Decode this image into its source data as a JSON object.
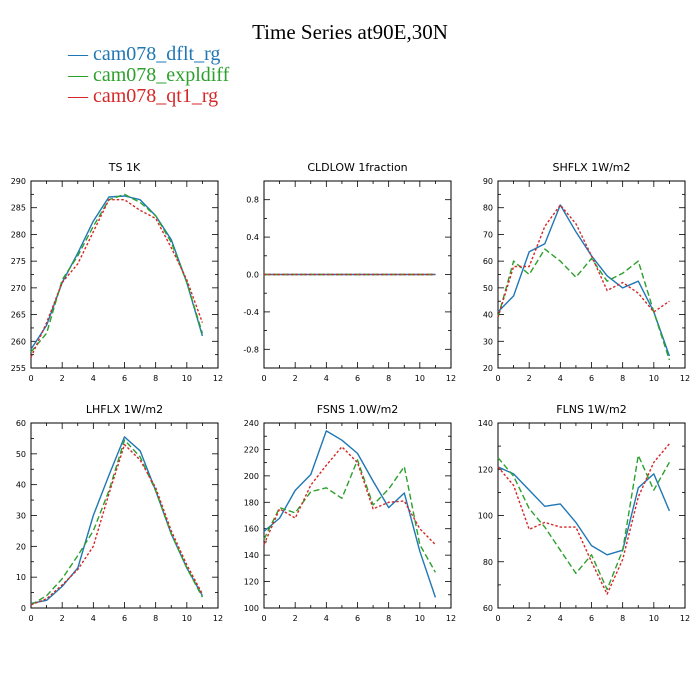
{
  "title": "Time Series at90E,30N",
  "legend": [
    {
      "label": "cam078_dflt_rg",
      "color": "#1f77b4",
      "dash": "solid"
    },
    {
      "label": "cam078_expldiff",
      "color": "#2ca02c",
      "dash": "dashed"
    },
    {
      "label": "cam078_qt1_rg",
      "color": "#d62728",
      "dash": "dotted"
    }
  ],
  "chart_data": [
    {
      "type": "line",
      "title": "TS   1K",
      "x": [
        0,
        1,
        2,
        3,
        4,
        5,
        6,
        7,
        8,
        9,
        10,
        11
      ],
      "xlim": [
        0,
        12
      ],
      "xticks": [
        0,
        2,
        4,
        6,
        8,
        10,
        12
      ],
      "ylim": [
        255,
        290
      ],
      "yticks": [
        255,
        260,
        265,
        270,
        275,
        280,
        285,
        290
      ],
      "series": [
        {
          "name": "cam078_dflt_rg",
          "values": [
            258.5,
            263,
            271,
            276.5,
            282.5,
            287,
            287.2,
            286.5,
            283.5,
            279,
            271,
            261
          ]
        },
        {
          "name": "cam078_expldiff",
          "values": [
            258,
            261.5,
            271.5,
            276,
            281.5,
            286.5,
            287.5,
            286,
            283.5,
            278.5,
            271,
            261.5
          ]
        },
        {
          "name": "cam078_qt1_rg",
          "values": [
            257,
            263.5,
            271,
            274.5,
            280.5,
            286.5,
            286.5,
            284.5,
            283,
            277.5,
            271.5,
            263.5
          ]
        }
      ]
    },
    {
      "type": "line",
      "title": "CLDLOW   1fraction",
      "x": [
        0,
        1,
        2,
        3,
        4,
        5,
        6,
        7,
        8,
        9,
        10,
        11
      ],
      "xlim": [
        0,
        12
      ],
      "xticks": [
        0,
        2,
        4,
        6,
        8,
        10,
        12
      ],
      "ylim": [
        -1,
        1
      ],
      "yticks": [
        -0.8,
        -0.4,
        0.0,
        0.4,
        0.8
      ],
      "ytick_labels": [
        "-0.8",
        "-0.4",
        "0.0",
        "0.4",
        "0.8"
      ],
      "series": [
        {
          "name": "cam078_dflt_rg",
          "values": [
            0,
            0,
            0,
            0,
            0,
            0,
            0,
            0,
            0,
            0,
            0,
            0
          ]
        },
        {
          "name": "cam078_expldiff",
          "values": [
            0,
            0,
            0,
            0,
            0,
            0,
            0,
            0,
            0,
            0,
            0,
            0
          ]
        },
        {
          "name": "cam078_qt1_rg",
          "values": [
            0,
            0,
            0,
            0,
            0,
            0,
            0,
            0,
            0,
            0,
            0,
            0
          ]
        }
      ]
    },
    {
      "type": "line",
      "title": "SHFLX   1W/m2",
      "x": [
        0,
        1,
        2,
        3,
        4,
        5,
        6,
        7,
        8,
        9,
        10,
        11
      ],
      "xlim": [
        0,
        12
      ],
      "xticks": [
        0,
        2,
        4,
        6,
        8,
        10,
        12
      ],
      "ylim": [
        20,
        90
      ],
      "yticks": [
        20,
        30,
        40,
        50,
        60,
        70,
        80,
        90
      ],
      "series": [
        {
          "name": "cam078_dflt_rg",
          "values": [
            41,
            47,
            63.5,
            66.5,
            81,
            71,
            62,
            54.5,
            50,
            52.5,
            41,
            24.5
          ]
        },
        {
          "name": "cam078_expldiff",
          "values": [
            39,
            60,
            55,
            64.5,
            60,
            54,
            61,
            52.5,
            55.5,
            60,
            41,
            23
          ]
        },
        {
          "name": "cam078_qt1_rg",
          "values": [
            39,
            58,
            58,
            73,
            81,
            74,
            62,
            49,
            52,
            48,
            41,
            45
          ]
        }
      ]
    },
    {
      "type": "line",
      "title": "LHFLX   1W/m2",
      "x": [
        0,
        1,
        2,
        3,
        4,
        5,
        6,
        7,
        8,
        9,
        10,
        11
      ],
      "xlim": [
        0,
        12
      ],
      "xticks": [
        0,
        2,
        4,
        6,
        8,
        10,
        12
      ],
      "ylim": [
        0,
        60
      ],
      "yticks": [
        0,
        10,
        20,
        30,
        40,
        50,
        60
      ],
      "series": [
        {
          "name": "cam078_dflt_rg",
          "values": [
            1.5,
            2.5,
            7,
            13,
            30,
            43,
            55.5,
            51,
            38,
            24,
            13,
            4
          ]
        },
        {
          "name": "cam078_expldiff",
          "values": [
            1,
            4,
            9.5,
            17,
            25,
            38,
            54.5,
            49,
            38,
            24,
            13,
            3.5
          ]
        },
        {
          "name": "cam078_qt1_rg",
          "values": [
            1,
            3,
            7.5,
            12.5,
            20,
            37,
            53,
            48,
            39,
            25,
            14,
            4.5
          ]
        }
      ]
    },
    {
      "type": "line",
      "title": "FSNS   1.0W/m2",
      "x": [
        0,
        1,
        2,
        3,
        4,
        5,
        6,
        7,
        8,
        9,
        10,
        11
      ],
      "xlim": [
        0,
        12
      ],
      "xticks": [
        0,
        2,
        4,
        6,
        8,
        10,
        12
      ],
      "ylim": [
        100,
        240
      ],
      "yticks": [
        100,
        120,
        140,
        160,
        180,
        200,
        220,
        240
      ],
      "series": [
        {
          "name": "cam078_dflt_rg",
          "values": [
            158,
            168,
            189,
            201,
            234,
            227,
            217,
            196,
            176,
            187,
            143,
            108
          ]
        },
        {
          "name": "cam078_expldiff",
          "values": [
            152,
            176,
            172,
            188,
            191,
            183,
            212,
            178,
            190,
            207,
            148,
            127
          ]
        },
        {
          "name": "cam078_qt1_rg",
          "values": [
            148,
            175,
            168,
            193,
            208,
            222,
            210,
            175,
            180,
            181,
            160,
            148
          ]
        }
      ]
    },
    {
      "type": "line",
      "title": "FLNS   1W/m2",
      "x": [
        0,
        1,
        2,
        3,
        4,
        5,
        6,
        7,
        8,
        9,
        10,
        11
      ],
      "xlim": [
        0,
        12
      ],
      "xticks": [
        0,
        2,
        4,
        6,
        8,
        10,
        12
      ],
      "ylim": [
        60,
        140
      ],
      "yticks": [
        60,
        80,
        100,
        120,
        140
      ],
      "series": [
        {
          "name": "cam078_dflt_rg",
          "values": [
            121,
            118,
            111,
            104,
            105,
            97,
            87,
            83,
            85,
            112,
            118,
            102
          ]
        },
        {
          "name": "cam078_expldiff",
          "values": [
            125,
            117,
            103,
            95,
            85,
            75,
            83,
            68,
            85,
            126,
            111,
            123
          ]
        },
        {
          "name": "cam078_qt1_rg",
          "values": [
            121,
            113,
            94,
            97,
            95,
            95,
            80,
            66,
            81,
            108,
            123,
            131
          ]
        }
      ]
    }
  ]
}
